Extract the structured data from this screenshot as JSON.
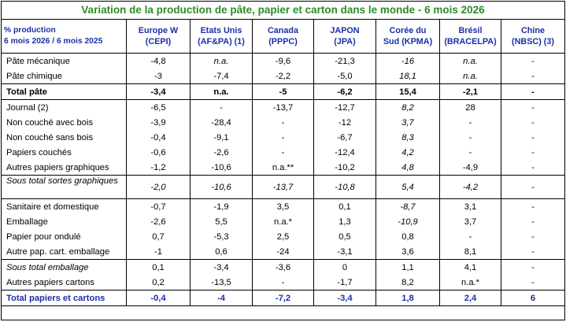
{
  "title": "Variation de la production de pâte, papier et carton dans le monde - 6 mois 2026",
  "header": {
    "label_line1": "% production",
    "label_line2": "6 mois 2026 / 6 mois 2025",
    "columns": [
      {
        "line1": "Europe  W",
        "line2": "(CEPI)"
      },
      {
        "line1": "Etats Unis",
        "line2": "(AF&PA) (1)"
      },
      {
        "line1": "Canada",
        "line2": "(PPPC)"
      },
      {
        "line1": "JAPON",
        "line2": "(JPA)"
      },
      {
        "line1": "Corée du",
        "line2": "Sud  (KPMA)"
      },
      {
        "line1": "Brésil",
        "line2": "(BRACELPA)"
      },
      {
        "line1": "Chine",
        "line2": "(NBSC) (3)"
      }
    ]
  },
  "rows": [
    {
      "label": "Pâte mécanique",
      "values": [
        "-4,8",
        "n.a.",
        "-9,6",
        "-21,3",
        "-16",
        "n.a.",
        "-"
      ]
    },
    {
      "label": "Pâte chimique",
      "values": [
        "-3",
        "-7,4",
        "-2,2",
        "-5,0",
        "18,1",
        "n.a.",
        "-"
      ]
    },
    {
      "label": "Total pâte",
      "values": [
        "-3,4",
        "n.a.",
        "-5",
        "-6,2",
        "15,4",
        "-2,1",
        "-"
      ]
    },
    {
      "label": "Journal (2)",
      "values": [
        "-6,5",
        "-",
        "-13,7",
        "-12,7",
        "8,2",
        "28",
        "-"
      ]
    },
    {
      "label": "Non couché avec bois",
      "values": [
        "-3,9",
        "-28,4",
        "-",
        "-12",
        "3,7",
        "-",
        "-"
      ]
    },
    {
      "label": "Non couché sans bois",
      "values": [
        "-0,4",
        "-9,1",
        "-",
        "-6,7",
        "8,3",
        "-",
        "-"
      ]
    },
    {
      "label": "Papiers couchés",
      "values": [
        "-0,6",
        "-2,6",
        "-",
        "-12,4",
        "4,2",
        "-",
        "-"
      ]
    },
    {
      "label": "Autres papiers graphiques",
      "values": [
        "-1,2",
        "-10,6",
        "n.a.**",
        "-10,2",
        "4,8",
        "-4,9",
        "-"
      ]
    },
    {
      "label": "Sous total sortes graphiques",
      "values": [
        "-2,0",
        "-10,6",
        "-13,7",
        "-10,8",
        "5,4",
        "-4,2",
        "-"
      ]
    },
    {
      "label": "Sanitaire et domestique",
      "values": [
        "-0,7",
        "-1,9",
        "3,5",
        "0,1",
        "-8,7",
        "3,1",
        "-"
      ]
    },
    {
      "label": "Emballage",
      "values": [
        "-2,6",
        "5,5",
        "n.a.*",
        "1,3",
        "-10,9",
        "3,7",
        "-"
      ]
    },
    {
      "label": "Papier pour ondulé",
      "values": [
        "0,7",
        "-5,3",
        "2,5",
        "0,5",
        "0,8",
        "-",
        "-"
      ]
    },
    {
      "label": "Autre pap. cart. emballage",
      "values": [
        "-1",
        "0,6",
        "-24",
        "-3,1",
        "3,6",
        "8,1",
        "-"
      ]
    },
    {
      "label": "Sous total emballage",
      "values": [
        "0,1",
        "-3,4",
        "-3,6",
        "0",
        "1,1",
        "4,1",
        "-"
      ]
    },
    {
      "label": "Autres papiers cartons",
      "values": [
        "0,2",
        "-13,5",
        "-",
        "-1,7",
        "8,2",
        "n.a.*",
        "-"
      ]
    },
    {
      "label": "Total papiers et cartons",
      "values": [
        "-0,4",
        "-4",
        "-7,2",
        "-3,4",
        "1,8",
        "2,4",
        "6"
      ]
    }
  ]
}
